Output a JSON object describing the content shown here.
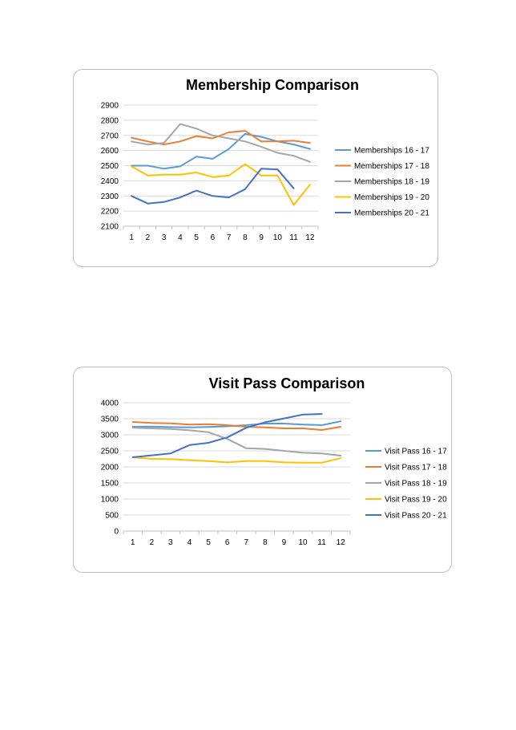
{
  "charts": [
    {
      "type": "line",
      "title": "Membership Comparison",
      "x": [
        1,
        2,
        3,
        4,
        5,
        6,
        7,
        8,
        9,
        10,
        11,
        12
      ],
      "ylim": [
        2100,
        2900
      ],
      "yticks": [
        2100,
        2200,
        2300,
        2400,
        2500,
        2600,
        2700,
        2800,
        2900
      ],
      "grid": true,
      "legend": "right",
      "series": [
        {
          "name": "Memberships 16 - 17",
          "color": "#5b9bd5",
          "values": [
            2500,
            2500,
            2480,
            2495,
            2560,
            2545,
            2610,
            2710,
            2690,
            2660,
            2640,
            2610
          ]
        },
        {
          "name": "Memberships 17 - 18",
          "color": "#ed7d31",
          "values": [
            2685,
            2660,
            2640,
            2660,
            2695,
            2680,
            2720,
            2730,
            2660,
            2660,
            2665,
            2650
          ]
        },
        {
          "name": "Memberships 18 - 19",
          "color": "#a5a5a5",
          "values": [
            2660,
            2640,
            2650,
            2775,
            2745,
            2700,
            2680,
            2660,
            2625,
            2585,
            2565,
            2525
          ]
        },
        {
          "name": "Memberships 19 - 20",
          "color": "#ffc000",
          "values": [
            2495,
            2435,
            2440,
            2440,
            2455,
            2425,
            2435,
            2510,
            2435,
            2435,
            2240,
            2375
          ]
        },
        {
          "name": "Memberships 20 - 21",
          "color": "#4472c4",
          "values": [
            2300,
            2250,
            2260,
            2290,
            2335,
            2300,
            2290,
            2345,
            2480,
            2475,
            2350,
            null
          ]
        }
      ]
    },
    {
      "type": "line",
      "title": "Visit Pass Comparison",
      "x": [
        1,
        2,
        3,
        4,
        5,
        6,
        7,
        8,
        9,
        10,
        11,
        12
      ],
      "ylim": [
        0,
        4000
      ],
      "yticks": [
        0,
        500,
        1000,
        1500,
        2000,
        2500,
        3000,
        3500,
        4000
      ],
      "grid": true,
      "legend": "right",
      "series": [
        {
          "name": "Visit Pass 16 - 17",
          "color": "#5b9bd5",
          "values": [
            3250,
            3255,
            3240,
            3230,
            3245,
            3265,
            3300,
            3350,
            3350,
            3320,
            3300,
            3420
          ]
        },
        {
          "name": "Visit Pass 17 - 18",
          "color": "#ed7d31",
          "values": [
            3400,
            3370,
            3355,
            3320,
            3330,
            3300,
            3250,
            3230,
            3200,
            3200,
            3150,
            3250
          ]
        },
        {
          "name": "Visit Pass 18 - 19",
          "color": "#a5a5a5",
          "values": [
            3220,
            3200,
            3180,
            3140,
            3080,
            2870,
            2580,
            2560,
            2500,
            2440,
            2420,
            2350
          ]
        },
        {
          "name": "Visit Pass 19 - 20",
          "color": "#ffc000",
          "values": [
            2300,
            2250,
            2240,
            2210,
            2180,
            2140,
            2180,
            2180,
            2140,
            2130,
            2130,
            2270
          ]
        },
        {
          "name": "Visit Pass 20 - 21",
          "color": "#4472c4",
          "values": [
            2300,
            2360,
            2420,
            2680,
            2750,
            2920,
            3220,
            3390,
            3510,
            3630,
            3650,
            null
          ]
        }
      ]
    }
  ]
}
